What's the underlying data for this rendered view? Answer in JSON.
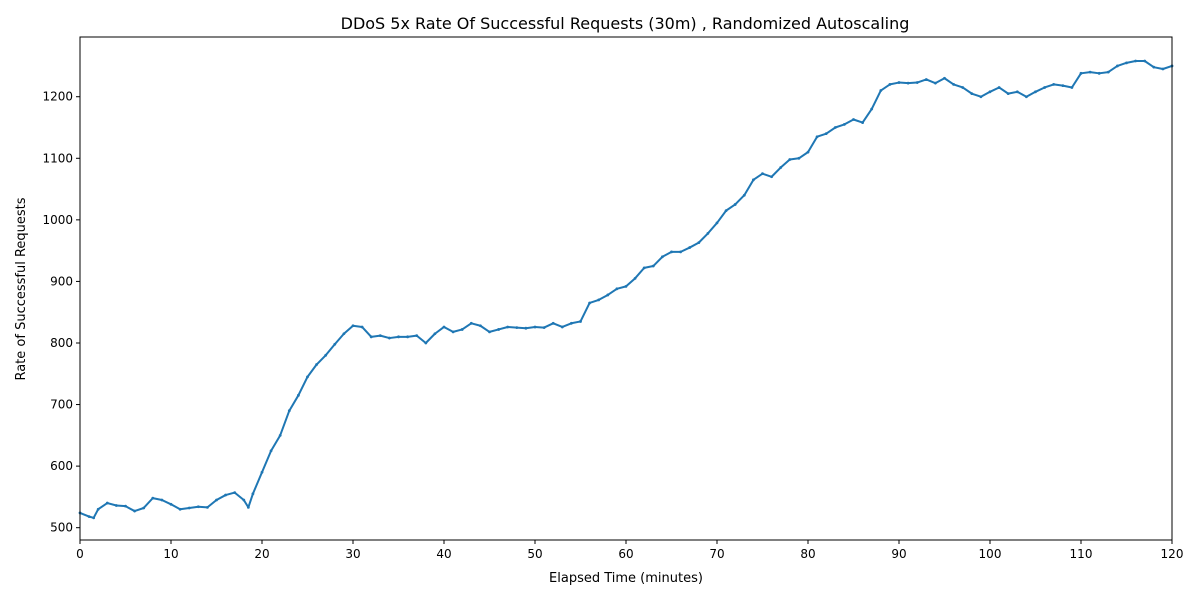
{
  "chart_data": {
    "type": "line",
    "title": "DDoS 5x Rate Of Successful Requests (30m) , Randomized Autoscaling",
    "xlabel": "Elapsed Time (minutes)",
    "ylabel": "Rate of Successful Requests",
    "xlim": [
      0,
      120
    ],
    "ylim": [
      480,
      1297
    ],
    "x_ticks": [
      0,
      10,
      20,
      30,
      40,
      50,
      60,
      70,
      80,
      90,
      100,
      110,
      120
    ],
    "y_ticks": [
      500,
      600,
      700,
      800,
      900,
      1000,
      1100,
      1200
    ],
    "grid": false,
    "legend": "none",
    "series": [
      {
        "color": "#1f77b4",
        "x": [
          0,
          1,
          1.5,
          2,
          3,
          4,
          5,
          6,
          7,
          8,
          9,
          10,
          11,
          12,
          13,
          14,
          15,
          16,
          17,
          18,
          18.5,
          19,
          20,
          21,
          22,
          23,
          24,
          25,
          26,
          27,
          28,
          29,
          30,
          31,
          32,
          33,
          34,
          35,
          36,
          37,
          38,
          39,
          40,
          41,
          42,
          43,
          44,
          45,
          46,
          47,
          48,
          49,
          50,
          51,
          52,
          53,
          54,
          55,
          56,
          57,
          58,
          59,
          60,
          61,
          62,
          63,
          64,
          65,
          66,
          67,
          68,
          69,
          70,
          71,
          72,
          73,
          74,
          75,
          76,
          77,
          78,
          79,
          80,
          81,
          82,
          83,
          84,
          85,
          86,
          87,
          88,
          89,
          90,
          91,
          92,
          93,
          94,
          95,
          96,
          97,
          98,
          99,
          100,
          101,
          102,
          103,
          104,
          105,
          106,
          107,
          108,
          109,
          110,
          111,
          112,
          113,
          114,
          115,
          116,
          117,
          118,
          119,
          120
        ],
        "y": [
          524,
          518,
          516,
          530,
          540,
          536,
          535,
          527,
          532,
          548,
          545,
          538,
          530,
          532,
          534,
          533,
          545,
          553,
          557,
          545,
          533,
          555,
          590,
          625,
          650,
          690,
          715,
          745,
          765,
          780,
          798,
          815,
          828,
          826,
          810,
          812,
          808,
          810,
          810,
          812,
          800,
          815,
          826,
          818,
          822,
          832,
          828,
          818,
          822,
          826,
          825,
          824,
          826,
          825,
          832,
          826,
          832,
          835,
          865,
          870,
          878,
          888,
          892,
          905,
          922,
          925,
          940,
          948,
          948,
          955,
          963,
          978,
          995,
          1015,
          1025,
          1040,
          1065,
          1075,
          1070,
          1085,
          1098,
          1100,
          1110,
          1135,
          1140,
          1150,
          1155,
          1163,
          1158,
          1180,
          1210,
          1220,
          1223,
          1222,
          1223,
          1228,
          1222,
          1230,
          1220,
          1215,
          1205,
          1200,
          1208,
          1215,
          1205,
          1208,
          1200,
          1208,
          1215,
          1220,
          1218,
          1215,
          1238,
          1240,
          1238,
          1240,
          1250,
          1255,
          1258,
          1258,
          1248,
          1245,
          1250
        ]
      }
    ]
  }
}
